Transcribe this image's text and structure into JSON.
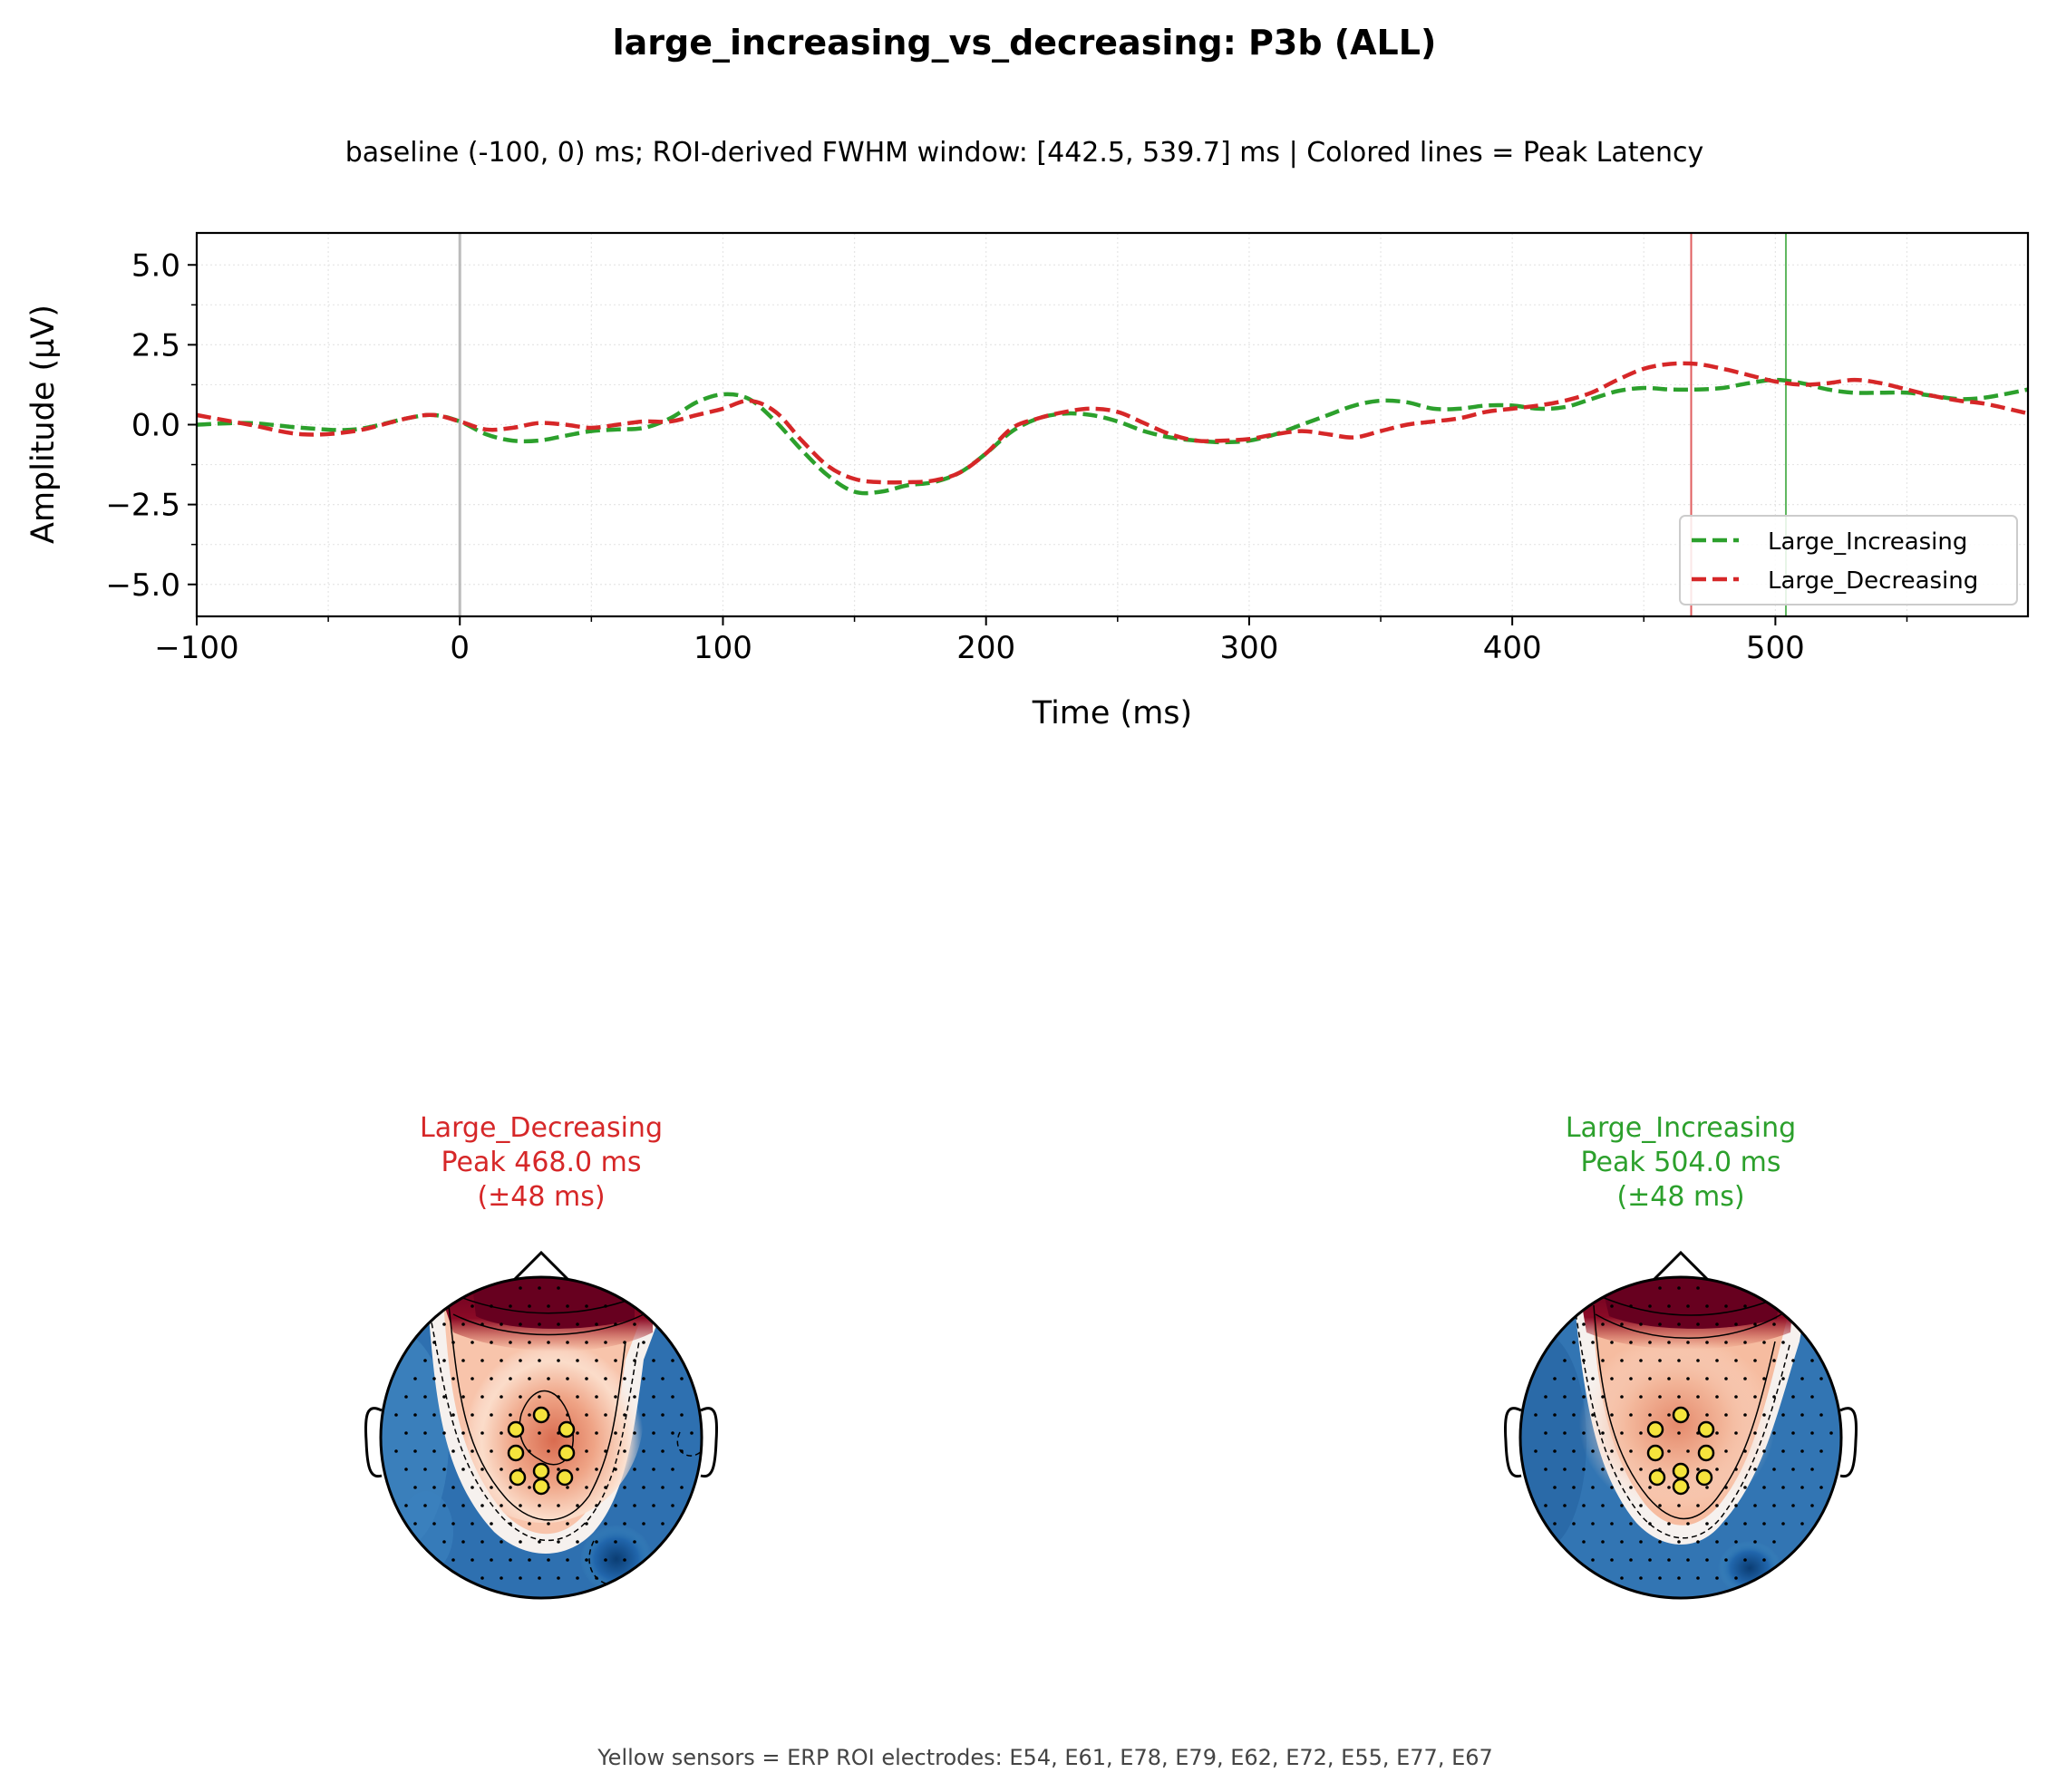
{
  "title": "large_increasing_vs_decreasing: P3b (ALL)",
  "subtitle": "baseline (-100, 0) ms; ROI-derived FWHM window: [442.5, 539.7] ms | Colored lines = Peak Latency",
  "footer": "Yellow sensors = ERP ROI electrodes: E54, E61, E78, E79, E62, E72, E55, E77, E67",
  "colors": {
    "increasing": "#2ca02c",
    "decreasing": "#d62728"
  },
  "chart_data": [
    {
      "type": "line",
      "xlabel": "Time (ms)",
      "ylabel": "Amplitude (µV)",
      "xlim": [
        -100,
        596
      ],
      "ylim": [
        -6,
        6
      ],
      "xticks": [
        -100,
        0,
        100,
        200,
        300,
        400,
        500
      ],
      "xtick_labels": [
        "−100",
        "0",
        "100",
        "200",
        "300",
        "400",
        "500"
      ],
      "yticks": [
        5.0,
        2.5,
        0.0,
        -2.5,
        -5.0
      ],
      "ytick_labels": [
        "5.0",
        "2.5",
        "0.0",
        "−2.5",
        "−5.0"
      ],
      "grid": true,
      "legend_position": "lower-right",
      "stimulus_onset_ms": 0,
      "peak_latency_lines": [
        {
          "series": "Large_Decreasing",
          "x": 468.0,
          "color": "#d62728"
        },
        {
          "series": "Large_Increasing",
          "x": 504.0,
          "color": "#2ca02c"
        }
      ],
      "series": [
        {
          "name": "Large_Increasing",
          "color": "#2ca02c",
          "style": "dashed",
          "x": [
            -100,
            -80,
            -60,
            -40,
            -20,
            -10,
            0,
            10,
            20,
            30,
            40,
            50,
            60,
            70,
            80,
            90,
            100,
            110,
            120,
            130,
            140,
            150,
            160,
            170,
            180,
            190,
            200,
            210,
            220,
            230,
            240,
            250,
            260,
            270,
            280,
            290,
            300,
            310,
            320,
            330,
            340,
            350,
            360,
            370,
            380,
            390,
            400,
            410,
            420,
            430,
            440,
            450,
            460,
            470,
            480,
            490,
            500,
            510,
            520,
            530,
            540,
            550,
            560,
            570,
            580,
            596
          ],
          "y": [
            0.0,
            0.05,
            -0.1,
            -0.15,
            0.2,
            0.3,
            0.1,
            -0.3,
            -0.5,
            -0.5,
            -0.35,
            -0.2,
            -0.15,
            -0.1,
            0.2,
            0.7,
            0.95,
            0.8,
            0.1,
            -0.8,
            -1.6,
            -2.1,
            -2.1,
            -1.9,
            -1.8,
            -1.5,
            -0.9,
            -0.2,
            0.2,
            0.35,
            0.3,
            0.1,
            -0.2,
            -0.4,
            -0.5,
            -0.55,
            -0.5,
            -0.3,
            0.0,
            0.3,
            0.6,
            0.75,
            0.7,
            0.5,
            0.5,
            0.6,
            0.6,
            0.5,
            0.55,
            0.8,
            1.05,
            1.15,
            1.1,
            1.1,
            1.15,
            1.3,
            1.4,
            1.3,
            1.1,
            1.0,
            1.0,
            1.0,
            0.9,
            0.8,
            0.85,
            1.1
          ]
        },
        {
          "name": "Large_Decreasing",
          "color": "#d62728",
          "style": "dashed",
          "x": [
            -100,
            -80,
            -60,
            -40,
            -20,
            -10,
            0,
            10,
            20,
            30,
            40,
            50,
            60,
            70,
            80,
            90,
            100,
            110,
            120,
            130,
            140,
            150,
            160,
            170,
            180,
            190,
            200,
            210,
            220,
            230,
            240,
            250,
            260,
            270,
            280,
            290,
            300,
            310,
            320,
            330,
            340,
            350,
            360,
            370,
            380,
            390,
            400,
            410,
            420,
            430,
            440,
            450,
            460,
            470,
            480,
            490,
            500,
            510,
            520,
            530,
            540,
            550,
            560,
            570,
            580,
            596
          ],
          "y": [
            0.3,
            0.0,
            -0.3,
            -0.2,
            0.2,
            0.3,
            0.1,
            -0.15,
            -0.1,
            0.05,
            0.0,
            -0.1,
            0.0,
            0.1,
            0.1,
            0.3,
            0.5,
            0.75,
            0.4,
            -0.5,
            -1.3,
            -1.7,
            -1.8,
            -1.8,
            -1.75,
            -1.5,
            -0.9,
            -0.1,
            0.2,
            0.4,
            0.5,
            0.4,
            0.05,
            -0.3,
            -0.5,
            -0.5,
            -0.45,
            -0.3,
            -0.2,
            -0.3,
            -0.4,
            -0.2,
            0.0,
            0.1,
            0.2,
            0.4,
            0.5,
            0.6,
            0.75,
            1.0,
            1.4,
            1.75,
            1.9,
            1.9,
            1.75,
            1.55,
            1.35,
            1.25,
            1.3,
            1.4,
            1.3,
            1.1,
            0.9,
            0.75,
            0.65,
            0.35
          ]
        }
      ]
    },
    {
      "type": "heatmap",
      "condition": "Large_Decreasing",
      "label_lines": [
        "Large_Decreasing",
        "Peak 468.0 ms",
        "(±48 ms)"
      ],
      "peak_ms": 468.0,
      "window_ms": 48,
      "color": "#d62728",
      "colormap": "RdBu_r",
      "roi_electrodes": [
        "E54",
        "E61",
        "E78",
        "E79",
        "E62",
        "E72",
        "E55",
        "E77",
        "E67"
      ]
    },
    {
      "type": "heatmap",
      "condition": "Large_Increasing",
      "label_lines": [
        "Large_Increasing",
        "Peak 504.0 ms",
        "(±48 ms)"
      ],
      "peak_ms": 504.0,
      "window_ms": 48,
      "color": "#2ca02c",
      "colormap": "RdBu_r",
      "roi_electrodes": [
        "E54",
        "E61",
        "E78",
        "E79",
        "E62",
        "E72",
        "E55",
        "E77",
        "E67"
      ]
    }
  ]
}
